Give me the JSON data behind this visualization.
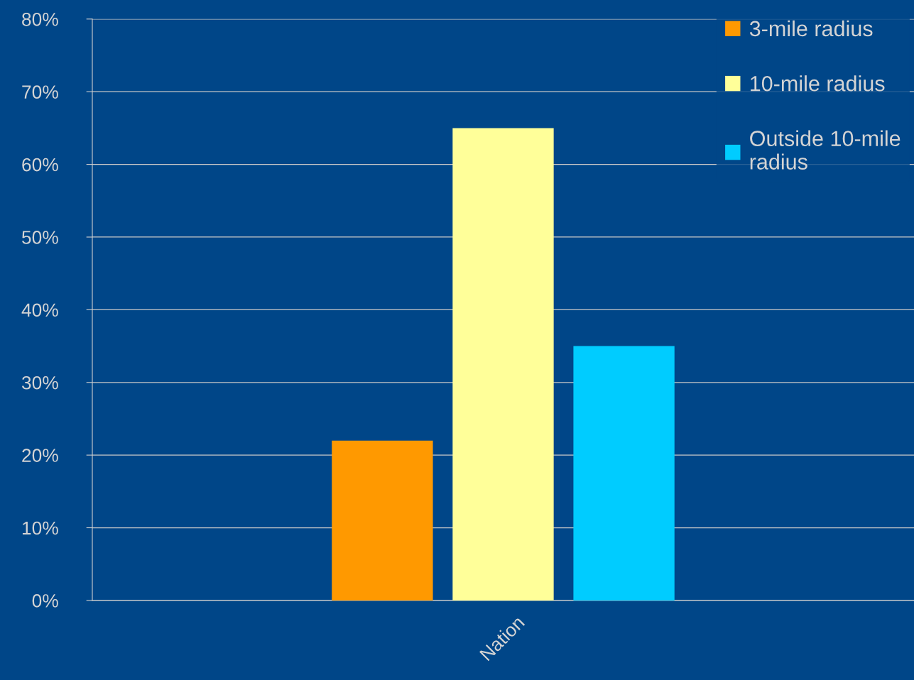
{
  "chart_data": {
    "type": "bar",
    "categories": [
      "Nation"
    ],
    "series": [
      {
        "name": "3-mile radius",
        "color": "#ff9900",
        "values": [
          22
        ]
      },
      {
        "name": "10-mile radius",
        "color": "#ffff99",
        "values": [
          65
        ]
      },
      {
        "name": "Outside 10-mile radius",
        "color": "#00ccff",
        "values": [
          35
        ]
      }
    ],
    "ylim": [
      0,
      80
    ],
    "yticks": [
      {
        "value": 0,
        "label": "0%"
      },
      {
        "value": 10,
        "label": "10%"
      },
      {
        "value": 20,
        "label": "20%"
      },
      {
        "value": 30,
        "label": "30%"
      },
      {
        "value": 40,
        "label": "40%"
      },
      {
        "value": 50,
        "label": "50%"
      },
      {
        "value": 60,
        "label": "60%"
      },
      {
        "value": 70,
        "label": "70%"
      },
      {
        "value": 80,
        "label": "80%"
      }
    ],
    "grid": "y",
    "legend": "top right"
  }
}
